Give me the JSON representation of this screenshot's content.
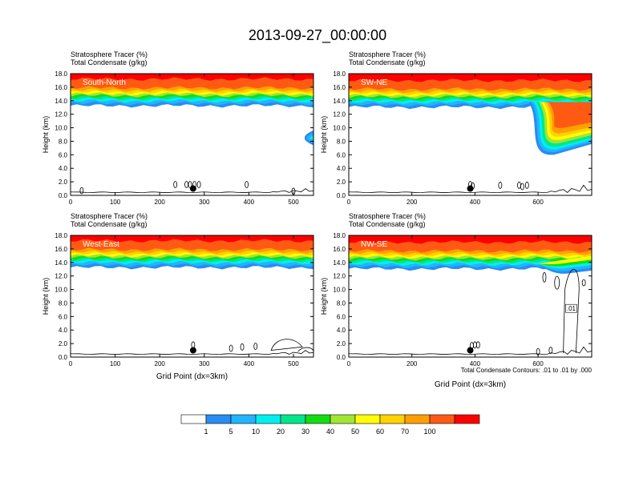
{
  "main_title": "2013-09-27_00:00:00",
  "colors": {
    "bins": [
      "#ffffff",
      "#2a8cf0",
      "#21b4ff",
      "#00f0f0",
      "#00e68c",
      "#14dc14",
      "#a0e632",
      "#ffff00",
      "#ffd200",
      "#ffa000",
      "#ff5a14",
      "#ff0000"
    ]
  },
  "legend": {
    "labels": [
      "1",
      "5",
      "10",
      "20",
      "30",
      "40",
      "50",
      "60",
      "70",
      "100"
    ]
  },
  "chart_data": [
    {
      "type": "heatmap",
      "name": "South-North",
      "panel_label": "South-North",
      "subtitle1": "Stratosphere Tracer   (%)",
      "subtitle2": "Total Condensate   (g/kg)",
      "ylabel": "Height (km)",
      "xlabel": "",
      "xlim": [
        0,
        545
      ],
      "ylim": [
        0,
        18
      ],
      "xticks": [
        0,
        100,
        200,
        300,
        400,
        500
      ],
      "yticks": [
        "0.0",
        "2.0",
        "4.0",
        "6.0",
        "8.0",
        "10.0",
        "12.0",
        "14.0",
        "16.0",
        "18.0"
      ],
      "tracer_base_km": 13.8,
      "marker": {
        "x": 275,
        "y": 1.0
      },
      "footnote": ""
    },
    {
      "type": "heatmap",
      "name": "SW-NE",
      "panel_label": "SW-NE",
      "subtitle1": "Stratosphere Tracer   (%)",
      "subtitle2": "Total Condensate   (g/kg)",
      "ylabel": "Height (km)",
      "xlabel": "",
      "xlim": [
        0,
        770
      ],
      "ylim": [
        0,
        18
      ],
      "xticks": [
        0,
        200,
        400,
        600
      ],
      "yticks": [
        "0.0",
        "2.0",
        "4.0",
        "6.0",
        "8.0",
        "10.0",
        "12.0",
        "14.0",
        "16.0",
        "18.0"
      ],
      "tracer_base_km": 13.6,
      "marker": {
        "x": 385,
        "y": 1.0
      },
      "footnote": ""
    },
    {
      "type": "heatmap",
      "name": "West-East",
      "panel_label": "West-East",
      "subtitle1": "Stratosphere Tracer   (%)",
      "subtitle2": "Total Condensate   (g/kg)",
      "ylabel": "Height (km)",
      "xlabel": "Grid Point (dx=3km)",
      "xlim": [
        0,
        545
      ],
      "ylim": [
        0,
        18
      ],
      "xticks": [
        0,
        100,
        200,
        300,
        400,
        500
      ],
      "yticks": [
        "0.0",
        "2.0",
        "4.0",
        "6.0",
        "8.0",
        "10.0",
        "12.0",
        "14.0",
        "16.0",
        "18.0"
      ],
      "tracer_base_km": 13.8,
      "marker": {
        "x": 275,
        "y": 1.0
      },
      "footnote": ""
    },
    {
      "type": "heatmap",
      "name": "NW-SE",
      "panel_label": "NW-SE",
      "subtitle1": "Stratosphere Tracer   (%)",
      "subtitle2": "Total Condensate   (g/kg)",
      "ylabel": "Height (km)",
      "xlabel": "Grid Point (dx=3km)",
      "xlim": [
        0,
        770
      ],
      "ylim": [
        0,
        18
      ],
      "xticks": [
        0,
        200,
        400,
        600
      ],
      "yticks": [
        "0.0",
        "2.0",
        "4.0",
        "6.0",
        "8.0",
        "10.0",
        "12.0",
        "14.0",
        "16.0",
        "18.0"
      ],
      "tracer_base_km": 13.6,
      "marker": {
        "x": 385,
        "y": 1.0
      },
      "contour_label": ".01",
      "footnote": "Total Condensate Contours: .01 to .01 by .000"
    }
  ]
}
